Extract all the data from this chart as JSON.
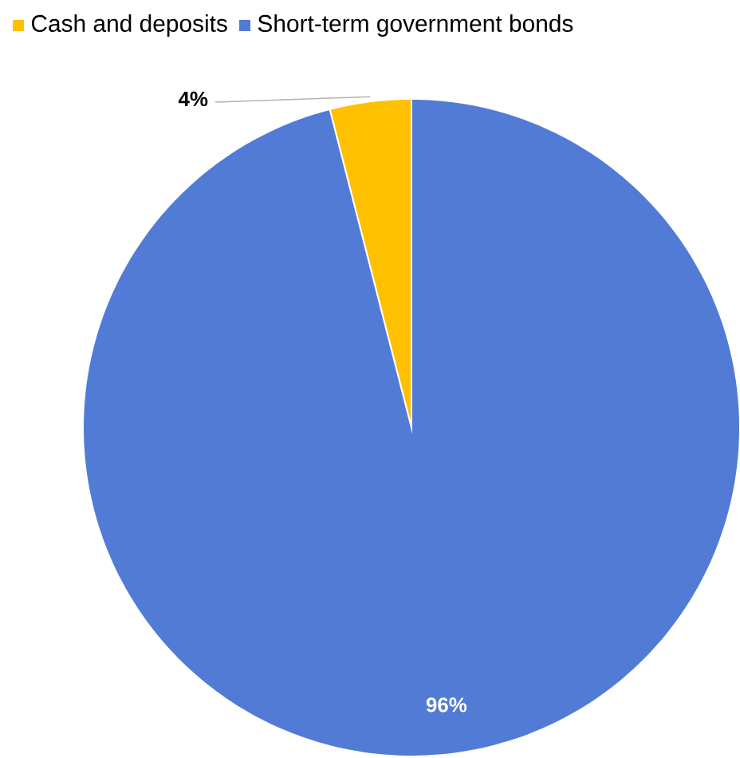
{
  "chart_data": {
    "type": "pie",
    "categories": [
      "Cash and deposits",
      "Short-term government bonds"
    ],
    "values": [
      4,
      96
    ],
    "colors": [
      "#ffc000",
      "#527bd6"
    ],
    "value_labels": [
      "4%",
      "96%"
    ],
    "legend": "top"
  }
}
